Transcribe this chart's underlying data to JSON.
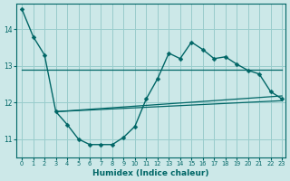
{
  "xlabel": "Humidex (Indice chaleur)",
  "background_color": "#cce8e8",
  "grid_color": "#99cccc",
  "line_color": "#006666",
  "xlim_min": -0.5,
  "xlim_max": 23.3,
  "ylim_min": 10.5,
  "ylim_max": 14.7,
  "yticks": [
    11,
    12,
    13,
    14
  ],
  "xticks": [
    0,
    1,
    2,
    3,
    4,
    5,
    6,
    7,
    8,
    9,
    10,
    11,
    12,
    13,
    14,
    15,
    16,
    17,
    18,
    19,
    20,
    21,
    22,
    23
  ],
  "main_x": [
    0,
    1,
    2,
    3,
    4,
    5,
    6,
    7,
    8,
    9,
    10,
    11,
    12,
    13,
    14,
    15,
    16,
    17,
    18,
    19,
    20,
    21,
    22,
    23
  ],
  "main_y": [
    14.55,
    13.8,
    13.3,
    11.75,
    11.4,
    11.0,
    10.85,
    10.85,
    10.85,
    11.05,
    11.35,
    12.1,
    12.65,
    13.35,
    13.2,
    13.65,
    13.45,
    13.2,
    13.25,
    13.05,
    12.88,
    12.78,
    12.3,
    12.1
  ],
  "flat_line_x": [
    0,
    23
  ],
  "flat_line_y": [
    12.9,
    12.9
  ],
  "rising_line1_x": [
    3,
    23
  ],
  "rising_line1_y": [
    11.75,
    12.05
  ],
  "rising_line2_x": [
    3,
    23
  ],
  "rising_line2_y": [
    11.75,
    12.18
  ]
}
